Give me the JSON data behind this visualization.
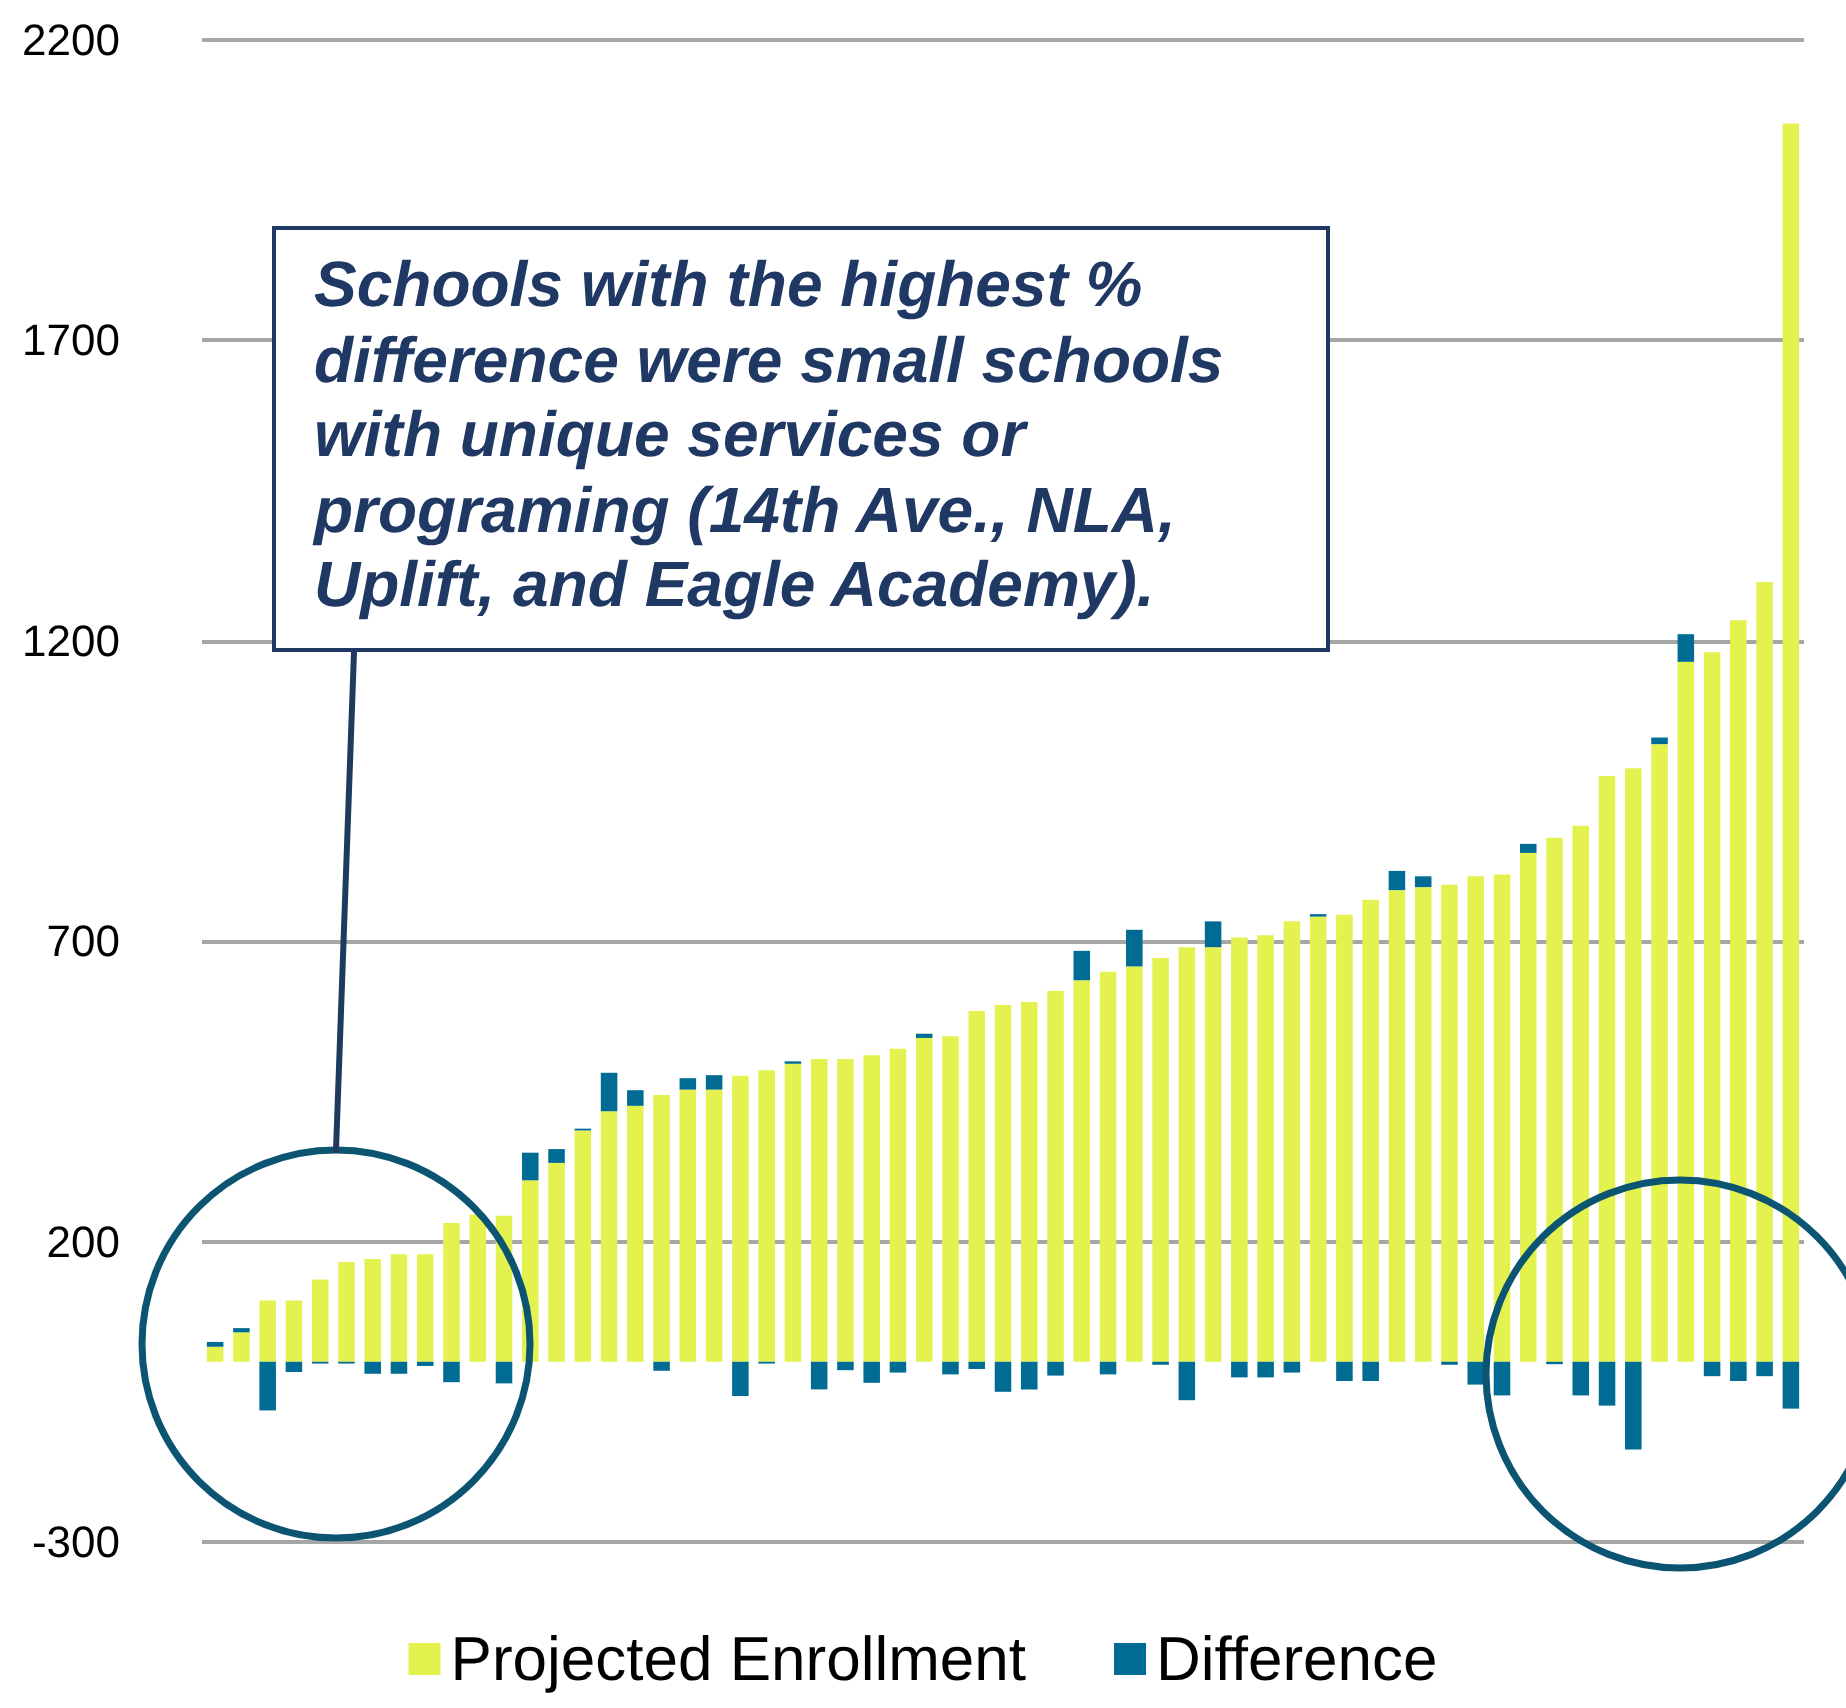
{
  "chart_data": {
    "type": "bar",
    "stacked": true,
    "categories": [
      null,
      null,
      null,
      null,
      null,
      null,
      null,
      null,
      null,
      null,
      null,
      null,
      null,
      null,
      null,
      null,
      null,
      null,
      null,
      null,
      null,
      null,
      null,
      null,
      null,
      null,
      null,
      null,
      null,
      null,
      null,
      null,
      null,
      null,
      null,
      null,
      null,
      null,
      null,
      null,
      null,
      null,
      null,
      null,
      null,
      null,
      null,
      null,
      null,
      null,
      null,
      null,
      null,
      null,
      null,
      null,
      null,
      null,
      null,
      null,
      null
    ],
    "series": [
      {
        "name": "Projected Enrollment",
        "color": "#e3f24f",
        "values": [
          25,
          49,
          102,
          102,
          137,
          166,
          171,
          179,
          179,
          231,
          245,
          243,
          302,
          331,
          385,
          417,
          426,
          444,
          453,
          453,
          476,
          485,
          496,
          504,
          504,
          510,
          521,
          539,
          542,
          584,
          594,
          599,
          617,
          635,
          649,
          658,
          672,
          690,
          690,
          706,
          710,
          733,
          741,
          744,
          769,
          785,
          790,
          794,
          808,
          811,
          847,
          872,
          892,
          975,
          988,
          1028,
          1165,
          1181,
          1234,
          1298,
          2061
        ]
      },
      {
        "name": "Difference",
        "color": "#006c93",
        "values": [
          8,
          7,
          -81,
          -17,
          -3,
          -3,
          -20,
          -20,
          -7,
          -34,
          0,
          -36,
          46,
          23,
          3,
          64,
          26,
          -15,
          19,
          24,
          -57,
          -3,
          4,
          -46,
          -14,
          -35,
          -18,
          7,
          -21,
          -12,
          -50,
          -46,
          -23,
          49,
          -21,
          61,
          -5,
          -64,
          43,
          -26,
          -26,
          -18,
          4,
          -32,
          -32,
          32,
          18,
          -5,
          -38,
          -56,
          15,
          -4,
          -56,
          -73,
          -146,
          11,
          46,
          -24,
          -32,
          -24,
          -78
        ]
      }
    ],
    "ylim": [
      -300,
      2200
    ],
    "yticks": [
      -300,
      200,
      700,
      1200,
      1700,
      2200
    ],
    "grid": "y",
    "tick_labels": "y",
    "legend": "bottom",
    "annotations": [
      "Schools with the highest % difference were small schools with unique services or programing (14th Ave., NLA, Uplift, and Eagle Academy)."
    ]
  }
}
